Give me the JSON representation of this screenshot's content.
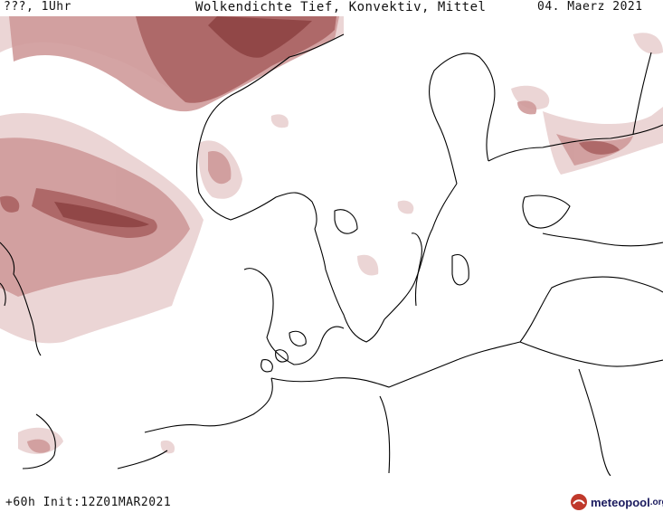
{
  "header": {
    "left": "???, 1Uhr",
    "center": "Wolkendichte  Tief, Konvektiv, Mittel",
    "right": "04. Maerz 2021"
  },
  "footer": {
    "forecast": "+60h Init:12Z01MAR2021"
  },
  "logo": {
    "name": "meteopool",
    "suffix": ".org",
    "accent_color": "#c0392b"
  },
  "map": {
    "cloud_colors": {
      "light": "#ead3d3",
      "medium": "#cf9a9a",
      "dark": "#a85f5f",
      "darkest": "#8a3f3f"
    },
    "coastline_color": "#000000"
  }
}
